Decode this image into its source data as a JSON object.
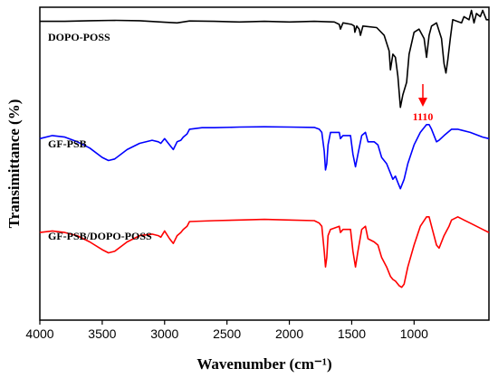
{
  "chart_data": {
    "type": "line",
    "xlabel": "Wavenumber (cm⁻¹)",
    "ylabel": "Transimittance (%)",
    "xlim": [
      4000,
      400
    ],
    "x_ticks": [
      4000,
      3500,
      3000,
      2500,
      2000,
      1500,
      1000
    ],
    "grid": false,
    "y_ticks_shown": false,
    "series": [
      {
        "name": "DOPO-POSS",
        "color": "#000000",
        "offset": 0.0,
        "points": [
          [
            4000,
            0.955
          ],
          [
            3800,
            0.955
          ],
          [
            3600,
            0.957
          ],
          [
            3400,
            0.958
          ],
          [
            3200,
            0.957
          ],
          [
            3000,
            0.952
          ],
          [
            2900,
            0.95
          ],
          [
            2800,
            0.956
          ],
          [
            2600,
            0.955
          ],
          [
            2400,
            0.953
          ],
          [
            2200,
            0.955
          ],
          [
            2000,
            0.953
          ],
          [
            1800,
            0.955
          ],
          [
            1640,
            0.953
          ],
          [
            1600,
            0.945
          ],
          [
            1590,
            0.93
          ],
          [
            1570,
            0.95
          ],
          [
            1500,
            0.945
          ],
          [
            1480,
            0.94
          ],
          [
            1475,
            0.92
          ],
          [
            1460,
            0.94
          ],
          [
            1440,
            0.93
          ],
          [
            1430,
            0.91
          ],
          [
            1410,
            0.94
          ],
          [
            1300,
            0.935
          ],
          [
            1240,
            0.91
          ],
          [
            1200,
            0.86
          ],
          [
            1190,
            0.8
          ],
          [
            1170,
            0.85
          ],
          [
            1150,
            0.84
          ],
          [
            1130,
            0.78
          ],
          [
            1110,
            0.68
          ],
          [
            1090,
            0.72
          ],
          [
            1060,
            0.76
          ],
          [
            1040,
            0.85
          ],
          [
            1000,
            0.92
          ],
          [
            960,
            0.93
          ],
          [
            920,
            0.9
          ],
          [
            900,
            0.84
          ],
          [
            880,
            0.91
          ],
          [
            860,
            0.94
          ],
          [
            820,
            0.95
          ],
          [
            780,
            0.9
          ],
          [
            760,
            0.82
          ],
          [
            745,
            0.79
          ],
          [
            730,
            0.83
          ],
          [
            710,
            0.9
          ],
          [
            690,
            0.96
          ],
          [
            620,
            0.95
          ],
          [
            600,
            0.97
          ],
          [
            560,
            0.96
          ],
          [
            540,
            0.99
          ],
          [
            520,
            0.95
          ],
          [
            500,
            0.98
          ],
          [
            470,
            0.97
          ],
          [
            450,
            0.99
          ],
          [
            420,
            0.96
          ],
          [
            400,
            0.96
          ]
        ]
      },
      {
        "name": "GF-PSB",
        "color": "#0000ff",
        "offset": 0.0,
        "points": [
          [
            4000,
            0.58
          ],
          [
            3900,
            0.59
          ],
          [
            3800,
            0.585
          ],
          [
            3700,
            0.57
          ],
          [
            3600,
            0.55
          ],
          [
            3500,
            0.52
          ],
          [
            3450,
            0.51
          ],
          [
            3400,
            0.515
          ],
          [
            3300,
            0.545
          ],
          [
            3200,
            0.565
          ],
          [
            3100,
            0.575
          ],
          [
            3050,
            0.57
          ],
          [
            3030,
            0.565
          ],
          [
            3000,
            0.58
          ],
          [
            2960,
            0.56
          ],
          [
            2930,
            0.545
          ],
          [
            2900,
            0.57
          ],
          [
            2870,
            0.575
          ],
          [
            2850,
            0.585
          ],
          [
            2820,
            0.595
          ],
          [
            2800,
            0.61
          ],
          [
            2700,
            0.615
          ],
          [
            2600,
            0.615
          ],
          [
            2400,
            0.617
          ],
          [
            2200,
            0.618
          ],
          [
            2000,
            0.617
          ],
          [
            1800,
            0.616
          ],
          [
            1760,
            0.61
          ],
          [
            1740,
            0.6
          ],
          [
            1720,
            0.54
          ],
          [
            1710,
            0.48
          ],
          [
            1700,
            0.5
          ],
          [
            1690,
            0.56
          ],
          [
            1670,
            0.6
          ],
          [
            1600,
            0.6
          ],
          [
            1590,
            0.58
          ],
          [
            1570,
            0.59
          ],
          [
            1510,
            0.59
          ],
          [
            1490,
            0.53
          ],
          [
            1470,
            0.49
          ],
          [
            1450,
            0.53
          ],
          [
            1420,
            0.59
          ],
          [
            1390,
            0.6
          ],
          [
            1370,
            0.57
          ],
          [
            1320,
            0.57
          ],
          [
            1290,
            0.56
          ],
          [
            1260,
            0.52
          ],
          [
            1220,
            0.5
          ],
          [
            1190,
            0.47
          ],
          [
            1170,
            0.45
          ],
          [
            1150,
            0.46
          ],
          [
            1130,
            0.44
          ],
          [
            1110,
            0.42
          ],
          [
            1080,
            0.45
          ],
          [
            1050,
            0.5
          ],
          [
            1000,
            0.56
          ],
          [
            950,
            0.6
          ],
          [
            900,
            0.625
          ],
          [
            880,
            0.625
          ],
          [
            860,
            0.61
          ],
          [
            820,
            0.57
          ],
          [
            800,
            0.575
          ],
          [
            760,
            0.59
          ],
          [
            700,
            0.61
          ],
          [
            650,
            0.61
          ],
          [
            550,
            0.6
          ],
          [
            450,
            0.585
          ],
          [
            400,
            0.58
          ]
        ]
      },
      {
        "name": "GF-PSB/DOPO-POSS",
        "color": "#ff0000",
        "offset": 0.0,
        "points": [
          [
            4000,
            0.28
          ],
          [
            3900,
            0.285
          ],
          [
            3800,
            0.28
          ],
          [
            3700,
            0.27
          ],
          [
            3600,
            0.25
          ],
          [
            3500,
            0.225
          ],
          [
            3450,
            0.215
          ],
          [
            3400,
            0.22
          ],
          [
            3300,
            0.25
          ],
          [
            3200,
            0.27
          ],
          [
            3100,
            0.275
          ],
          [
            3050,
            0.27
          ],
          [
            3030,
            0.265
          ],
          [
            3000,
            0.285
          ],
          [
            2960,
            0.26
          ],
          [
            2930,
            0.245
          ],
          [
            2900,
            0.27
          ],
          [
            2870,
            0.28
          ],
          [
            2850,
            0.29
          ],
          [
            2820,
            0.3
          ],
          [
            2800,
            0.315
          ],
          [
            2600,
            0.318
          ],
          [
            2400,
            0.32
          ],
          [
            2200,
            0.322
          ],
          [
            2000,
            0.32
          ],
          [
            1800,
            0.318
          ],
          [
            1760,
            0.31
          ],
          [
            1740,
            0.3
          ],
          [
            1720,
            0.22
          ],
          [
            1710,
            0.17
          ],
          [
            1700,
            0.2
          ],
          [
            1690,
            0.27
          ],
          [
            1670,
            0.29
          ],
          [
            1600,
            0.3
          ],
          [
            1590,
            0.28
          ],
          [
            1570,
            0.29
          ],
          [
            1510,
            0.29
          ],
          [
            1490,
            0.22
          ],
          [
            1470,
            0.17
          ],
          [
            1450,
            0.22
          ],
          [
            1420,
            0.29
          ],
          [
            1390,
            0.3
          ],
          [
            1370,
            0.26
          ],
          [
            1320,
            0.25
          ],
          [
            1290,
            0.24
          ],
          [
            1260,
            0.2
          ],
          [
            1220,
            0.17
          ],
          [
            1190,
            0.14
          ],
          [
            1170,
            0.13
          ],
          [
            1150,
            0.125
          ],
          [
            1120,
            0.11
          ],
          [
            1100,
            0.105
          ],
          [
            1080,
            0.115
          ],
          [
            1050,
            0.17
          ],
          [
            1000,
            0.24
          ],
          [
            950,
            0.3
          ],
          [
            900,
            0.33
          ],
          [
            880,
            0.33
          ],
          [
            860,
            0.3
          ],
          [
            820,
            0.24
          ],
          [
            800,
            0.23
          ],
          [
            760,
            0.27
          ],
          [
            720,
            0.3
          ],
          [
            700,
            0.32
          ],
          [
            650,
            0.33
          ],
          [
            600,
            0.32
          ],
          [
            550,
            0.31
          ],
          [
            450,
            0.29
          ],
          [
            400,
            0.28
          ]
        ]
      }
    ],
    "series_labels": [
      "DOPO-POSS",
      "GF-PSB",
      "GF-PSB/DOPO-POSS"
    ],
    "annotations": [
      {
        "text": "1110",
        "x": 1110,
        "color": "#ff0000",
        "type": "arrow-down"
      }
    ]
  }
}
